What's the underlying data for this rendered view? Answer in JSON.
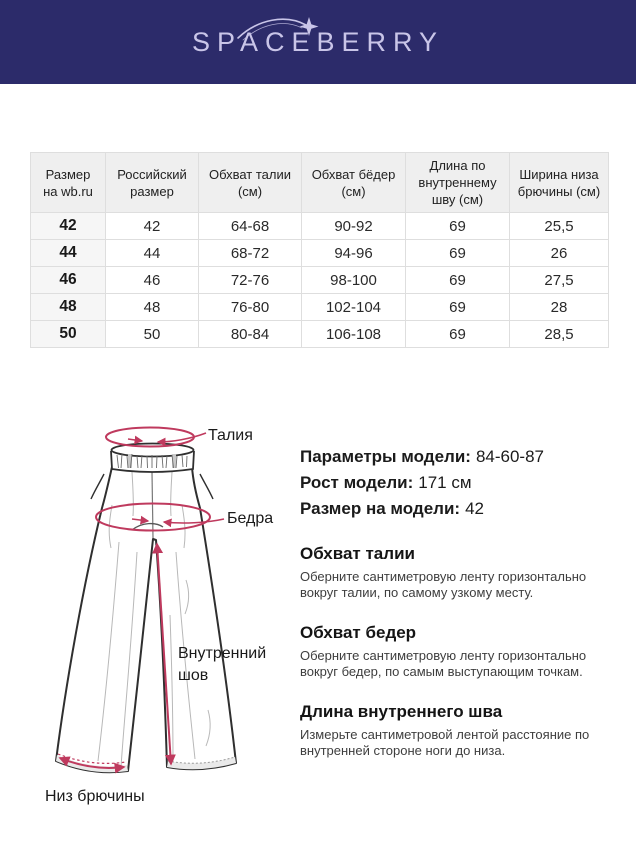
{
  "header": {
    "logo": "SPACEBERRY"
  },
  "size_table": {
    "columns": [
      "Размер на wb.ru",
      "Российский размер",
      "Обхват талии (см)",
      "Обхват бёдер (см)",
      "Длина по внутреннему шву (см)",
      "Ширина низа брючины (см)"
    ],
    "rows": [
      [
        "42",
        "42",
        "64-68",
        "90-92",
        "69",
        "25,5"
      ],
      [
        "44",
        "44",
        "68-72",
        "94-96",
        "69",
        "26"
      ],
      [
        "46",
        "46",
        "72-76",
        "98-100",
        "69",
        "27,5"
      ],
      [
        "48",
        "48",
        "76-80",
        "102-104",
        "69",
        "28"
      ],
      [
        "50",
        "50",
        "80-84",
        "106-108",
        "69",
        "28,5"
      ]
    ]
  },
  "diagram": {
    "labels": {
      "waist": "Талия",
      "hips": "Бедра",
      "inseam_line1": "Внутренний",
      "inseam_line2": "шов",
      "hem": "Низ брючины"
    }
  },
  "model_info": {
    "lines": [
      {
        "label": "Параметры модели:",
        "value": "84-60-87"
      },
      {
        "label": "Рост модели:",
        "value": "171 см"
      },
      {
        "label": "Размер на модели:",
        "value": "42"
      }
    ]
  },
  "measure_sections": [
    {
      "title": "Обхват талии",
      "text": "Оберните сантиметровую ленту горизонтально вокруг талии, по самому узкому месту."
    },
    {
      "title": "Обхват бедер",
      "text": "Оберните сантиметровую ленту горизонтально вокруг бедер, по самым выступающим точкам."
    },
    {
      "title": "Длина внутреннего шва",
      "text": "Измерьте сантиметровой лентой расстояние по внутренней стороне ноги до низа."
    }
  ],
  "colors": {
    "header_navy": "#2c2b6a",
    "logo_text": "#c9c5e8",
    "accent_pink": "#bf3a5e",
    "table_header_bg": "#efefef",
    "table_first_col_bg": "#f6f6f6",
    "table_border": "#dedede"
  }
}
